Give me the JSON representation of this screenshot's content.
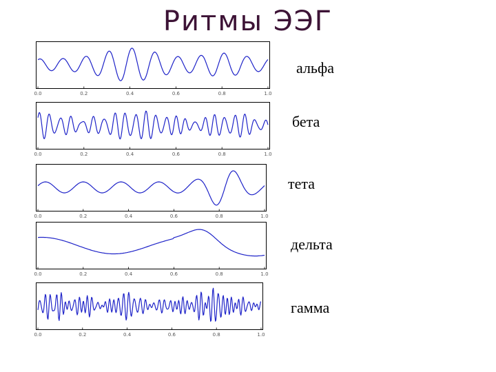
{
  "title": "Ритмы ЭЭГ",
  "colors": {
    "title": "#3d1336",
    "wave": "#1d22c8",
    "frame": "#000000"
  },
  "chart_data": [
    {
      "type": "line",
      "name": "альфа",
      "label": "альфа",
      "xlim": [
        0,
        1
      ],
      "xticks": [
        "0.0",
        "0.2",
        "0.4",
        "0.6",
        "0.8",
        "1.0"
      ],
      "waveform": "alpha"
    },
    {
      "type": "line",
      "name": "бета",
      "label": "бета",
      "xlim": [
        0,
        1
      ],
      "xticks": [
        "0.0",
        "0.2",
        "0.4",
        "0.6",
        "0.8",
        "1.0"
      ],
      "waveform": "beta"
    },
    {
      "type": "line",
      "name": "тета",
      "label": "тета",
      "xlim": [
        0,
        1
      ],
      "xticks": [
        "0.0",
        "0.2",
        "0.4",
        "0.6",
        "0.8",
        "1.0"
      ],
      "waveform": "theta"
    },
    {
      "type": "line",
      "name": "дельта",
      "label": "дельта",
      "xlim": [
        0,
        1
      ],
      "xticks": [
        "0.0",
        "0.2",
        "0.4",
        "0.6",
        "0.8",
        "1.0"
      ],
      "waveform": "delta"
    },
    {
      "type": "line",
      "name": "гамма",
      "label": "гамма",
      "xlim": [
        0,
        1
      ],
      "xticks": [
        "0.0",
        "0.2",
        "0.4",
        "0.6",
        "0.8",
        "1.0"
      ],
      "waveform": "gamma"
    }
  ]
}
